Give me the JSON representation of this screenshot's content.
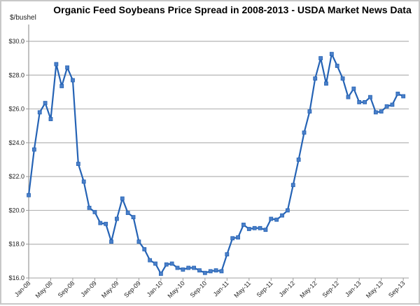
{
  "chart_data": {
    "type": "line",
    "title": "Organic Feed Soybeans Price Spread in 2008-2013 - USDA Market News Data",
    "ylabel": "$/bushel",
    "xlabel": "",
    "ylim": [
      16,
      30
    ],
    "yticks": [
      "$16.0",
      "$18.0",
      "$20.0",
      "$22.0",
      "$24.0",
      "$26.0",
      "$28.0",
      "$30.0"
    ],
    "xtick_labels": [
      "Jan-08",
      "May-08",
      "Sep-08",
      "Jan-09",
      "May-09",
      "Sep-09",
      "Jan-10",
      "May-10",
      "Sep-10",
      "Jan-11",
      "May-11",
      "Sep-11",
      "Jan-12",
      "May-12",
      "Sep-12",
      "Jan-13",
      "May-13",
      "Sep-13"
    ],
    "grid": true,
    "legend": "none",
    "color": "#2563b5",
    "marker": "square",
    "x_start": "Jan-08",
    "x_step": "1 month",
    "values": [
      20.9,
      23.6,
      25.8,
      26.35,
      25.4,
      28.65,
      27.35,
      28.45,
      27.7,
      22.75,
      21.7,
      20.15,
      19.9,
      19.25,
      19.2,
      18.15,
      19.5,
      20.7,
      19.85,
      19.6,
      18.15,
      17.7,
      17.05,
      16.85,
      16.25,
      16.8,
      16.85,
      16.6,
      16.5,
      16.6,
      16.6,
      16.45,
      16.3,
      16.4,
      16.45,
      16.4,
      17.4,
      18.35,
      18.4,
      19.15,
      18.9,
      18.95,
      18.95,
      18.85,
      19.5,
      19.45,
      19.7,
      20.0,
      21.5,
      23.0,
      24.6,
      25.85,
      27.8,
      29.0,
      27.5,
      29.25,
      28.55,
      27.8,
      26.7,
      27.2,
      26.4,
      26.4,
      26.7,
      25.8,
      25.85,
      26.15,
      26.25,
      26.9,
      26.75
    ]
  }
}
